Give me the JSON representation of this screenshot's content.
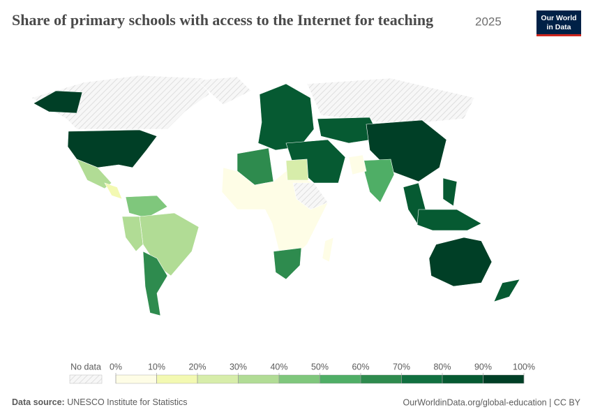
{
  "header": {
    "title": "Share of primary schools with access to the Internet for teaching",
    "year": "2025"
  },
  "logo": {
    "line1": "Our World",
    "line2": "in Data"
  },
  "legend": {
    "no_data": "No data",
    "ticks": [
      {
        "value": 0,
        "label": "0%"
      },
      {
        "value": 10,
        "label": "10%"
      },
      {
        "value": 20,
        "label": "20%"
      },
      {
        "value": 30,
        "label": "30%"
      },
      {
        "value": 40,
        "label": "40%"
      },
      {
        "value": 50,
        "label": "50%"
      },
      {
        "value": 60,
        "label": "60%"
      },
      {
        "value": 70,
        "label": "70%"
      },
      {
        "value": 80,
        "label": "80%"
      },
      {
        "value": 90,
        "label": "90%"
      },
      {
        "value": 100,
        "label": "100%"
      }
    ],
    "colors": [
      "#fefde6",
      "#f3f9b2",
      "#d7edaa",
      "#b1dc95",
      "#7fc77c",
      "#4fae66",
      "#2e8b4e",
      "#117040",
      "#065a32",
      "#003f26"
    ]
  },
  "footer": {
    "source_label": "Data source:",
    "source": "UNESCO Institute for Statistics",
    "url": "OurWorldinData.org/global-education | CC BY"
  }
}
